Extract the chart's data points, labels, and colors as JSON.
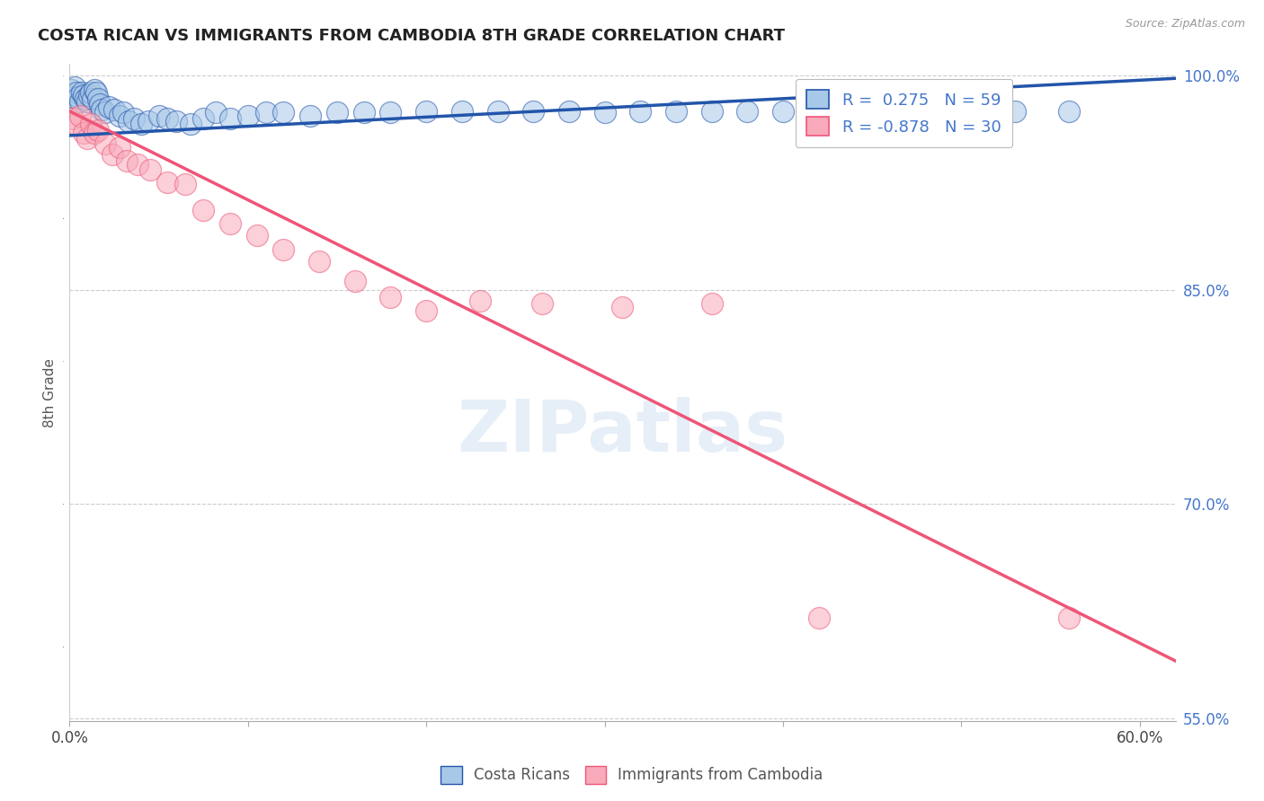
{
  "title": "COSTA RICAN VS IMMIGRANTS FROM CAMBODIA 8TH GRADE CORRELATION CHART",
  "source": "Source: ZipAtlas.com",
  "ylabel": "8th Grade",
  "watermark": "ZIPatlas",
  "xmin": 0.0,
  "xmax": 0.62,
  "ymin": 0.548,
  "ymax": 1.008,
  "blue_R": 0.275,
  "blue_N": 59,
  "pink_R": -0.878,
  "pink_N": 30,
  "blue_color": "#A8C8E8",
  "pink_color": "#F8AABB",
  "blue_line_color": "#2255AA",
  "pink_line_color": "#EE5577",
  "blue_scatter_x": [
    0.001,
    0.002,
    0.003,
    0.004,
    0.005,
    0.006,
    0.007,
    0.008,
    0.009,
    0.01,
    0.011,
    0.012,
    0.013,
    0.014,
    0.015,
    0.016,
    0.017,
    0.018,
    0.02,
    0.022,
    0.025,
    0.028,
    0.03,
    0.033,
    0.036,
    0.04,
    0.044,
    0.05,
    0.055,
    0.06,
    0.068,
    0.075,
    0.082,
    0.09,
    0.1,
    0.11,
    0.12,
    0.135,
    0.15,
    0.165,
    0.18,
    0.2,
    0.22,
    0.24,
    0.26,
    0.28,
    0.3,
    0.32,
    0.34,
    0.36,
    0.38,
    0.4,
    0.42,
    0.44,
    0.46,
    0.48,
    0.5,
    0.53,
    0.56
  ],
  "blue_scatter_y": [
    0.99,
    0.985,
    0.992,
    0.988,
    0.985,
    0.982,
    0.988,
    0.986,
    0.984,
    0.982,
    0.986,
    0.988,
    0.984,
    0.99,
    0.988,
    0.984,
    0.98,
    0.976,
    0.974,
    0.978,
    0.976,
    0.972,
    0.974,
    0.968,
    0.97,
    0.966,
    0.968,
    0.972,
    0.97,
    0.968,
    0.966,
    0.97,
    0.974,
    0.97,
    0.972,
    0.974,
    0.974,
    0.972,
    0.974,
    0.974,
    0.974,
    0.975,
    0.975,
    0.975,
    0.975,
    0.975,
    0.974,
    0.975,
    0.975,
    0.975,
    0.975,
    0.975,
    0.975,
    0.975,
    0.975,
    0.975,
    0.975,
    0.975,
    0.975
  ],
  "pink_scatter_x": [
    0.002,
    0.004,
    0.006,
    0.008,
    0.01,
    0.012,
    0.014,
    0.016,
    0.02,
    0.024,
    0.028,
    0.032,
    0.038,
    0.045,
    0.055,
    0.065,
    0.075,
    0.09,
    0.105,
    0.12,
    0.14,
    0.16,
    0.18,
    0.2,
    0.23,
    0.265,
    0.31,
    0.36,
    0.42,
    0.56
  ],
  "pink_scatter_y": [
    0.97,
    0.966,
    0.972,
    0.96,
    0.956,
    0.966,
    0.96,
    0.962,
    0.952,
    0.945,
    0.95,
    0.94,
    0.938,
    0.934,
    0.925,
    0.924,
    0.906,
    0.896,
    0.888,
    0.878,
    0.87,
    0.856,
    0.845,
    0.835,
    0.842,
    0.84,
    0.838,
    0.84,
    0.62,
    0.62
  ],
  "blue_trend_x": [
    0.0,
    0.62
  ],
  "blue_trend_y": [
    0.958,
    0.998
  ],
  "pink_trend_x": [
    0.0,
    0.62
  ],
  "pink_trend_y": [
    0.975,
    0.59
  ],
  "background_color": "#FFFFFF",
  "grid_color": "#CCCCCC",
  "title_color": "#222222",
  "axis_label_color": "#555555",
  "right_axis_color": "#4477CC",
  "xticks": [
    0.0,
    0.1,
    0.2,
    0.3,
    0.4,
    0.5,
    0.6
  ],
  "xtick_labels": [
    "0.0%",
    "",
    "",
    "",
    "",
    "",
    "60.0%"
  ],
  "ytick_positions": [
    0.55,
    0.7,
    0.85,
    1.0
  ],
  "ytick_labels": [
    "55.0%",
    "70.0%",
    "85.0%",
    "100.0%"
  ],
  "bottom_legend_blue": "Costa Ricans",
  "bottom_legend_pink": "Immigrants from Cambodia"
}
